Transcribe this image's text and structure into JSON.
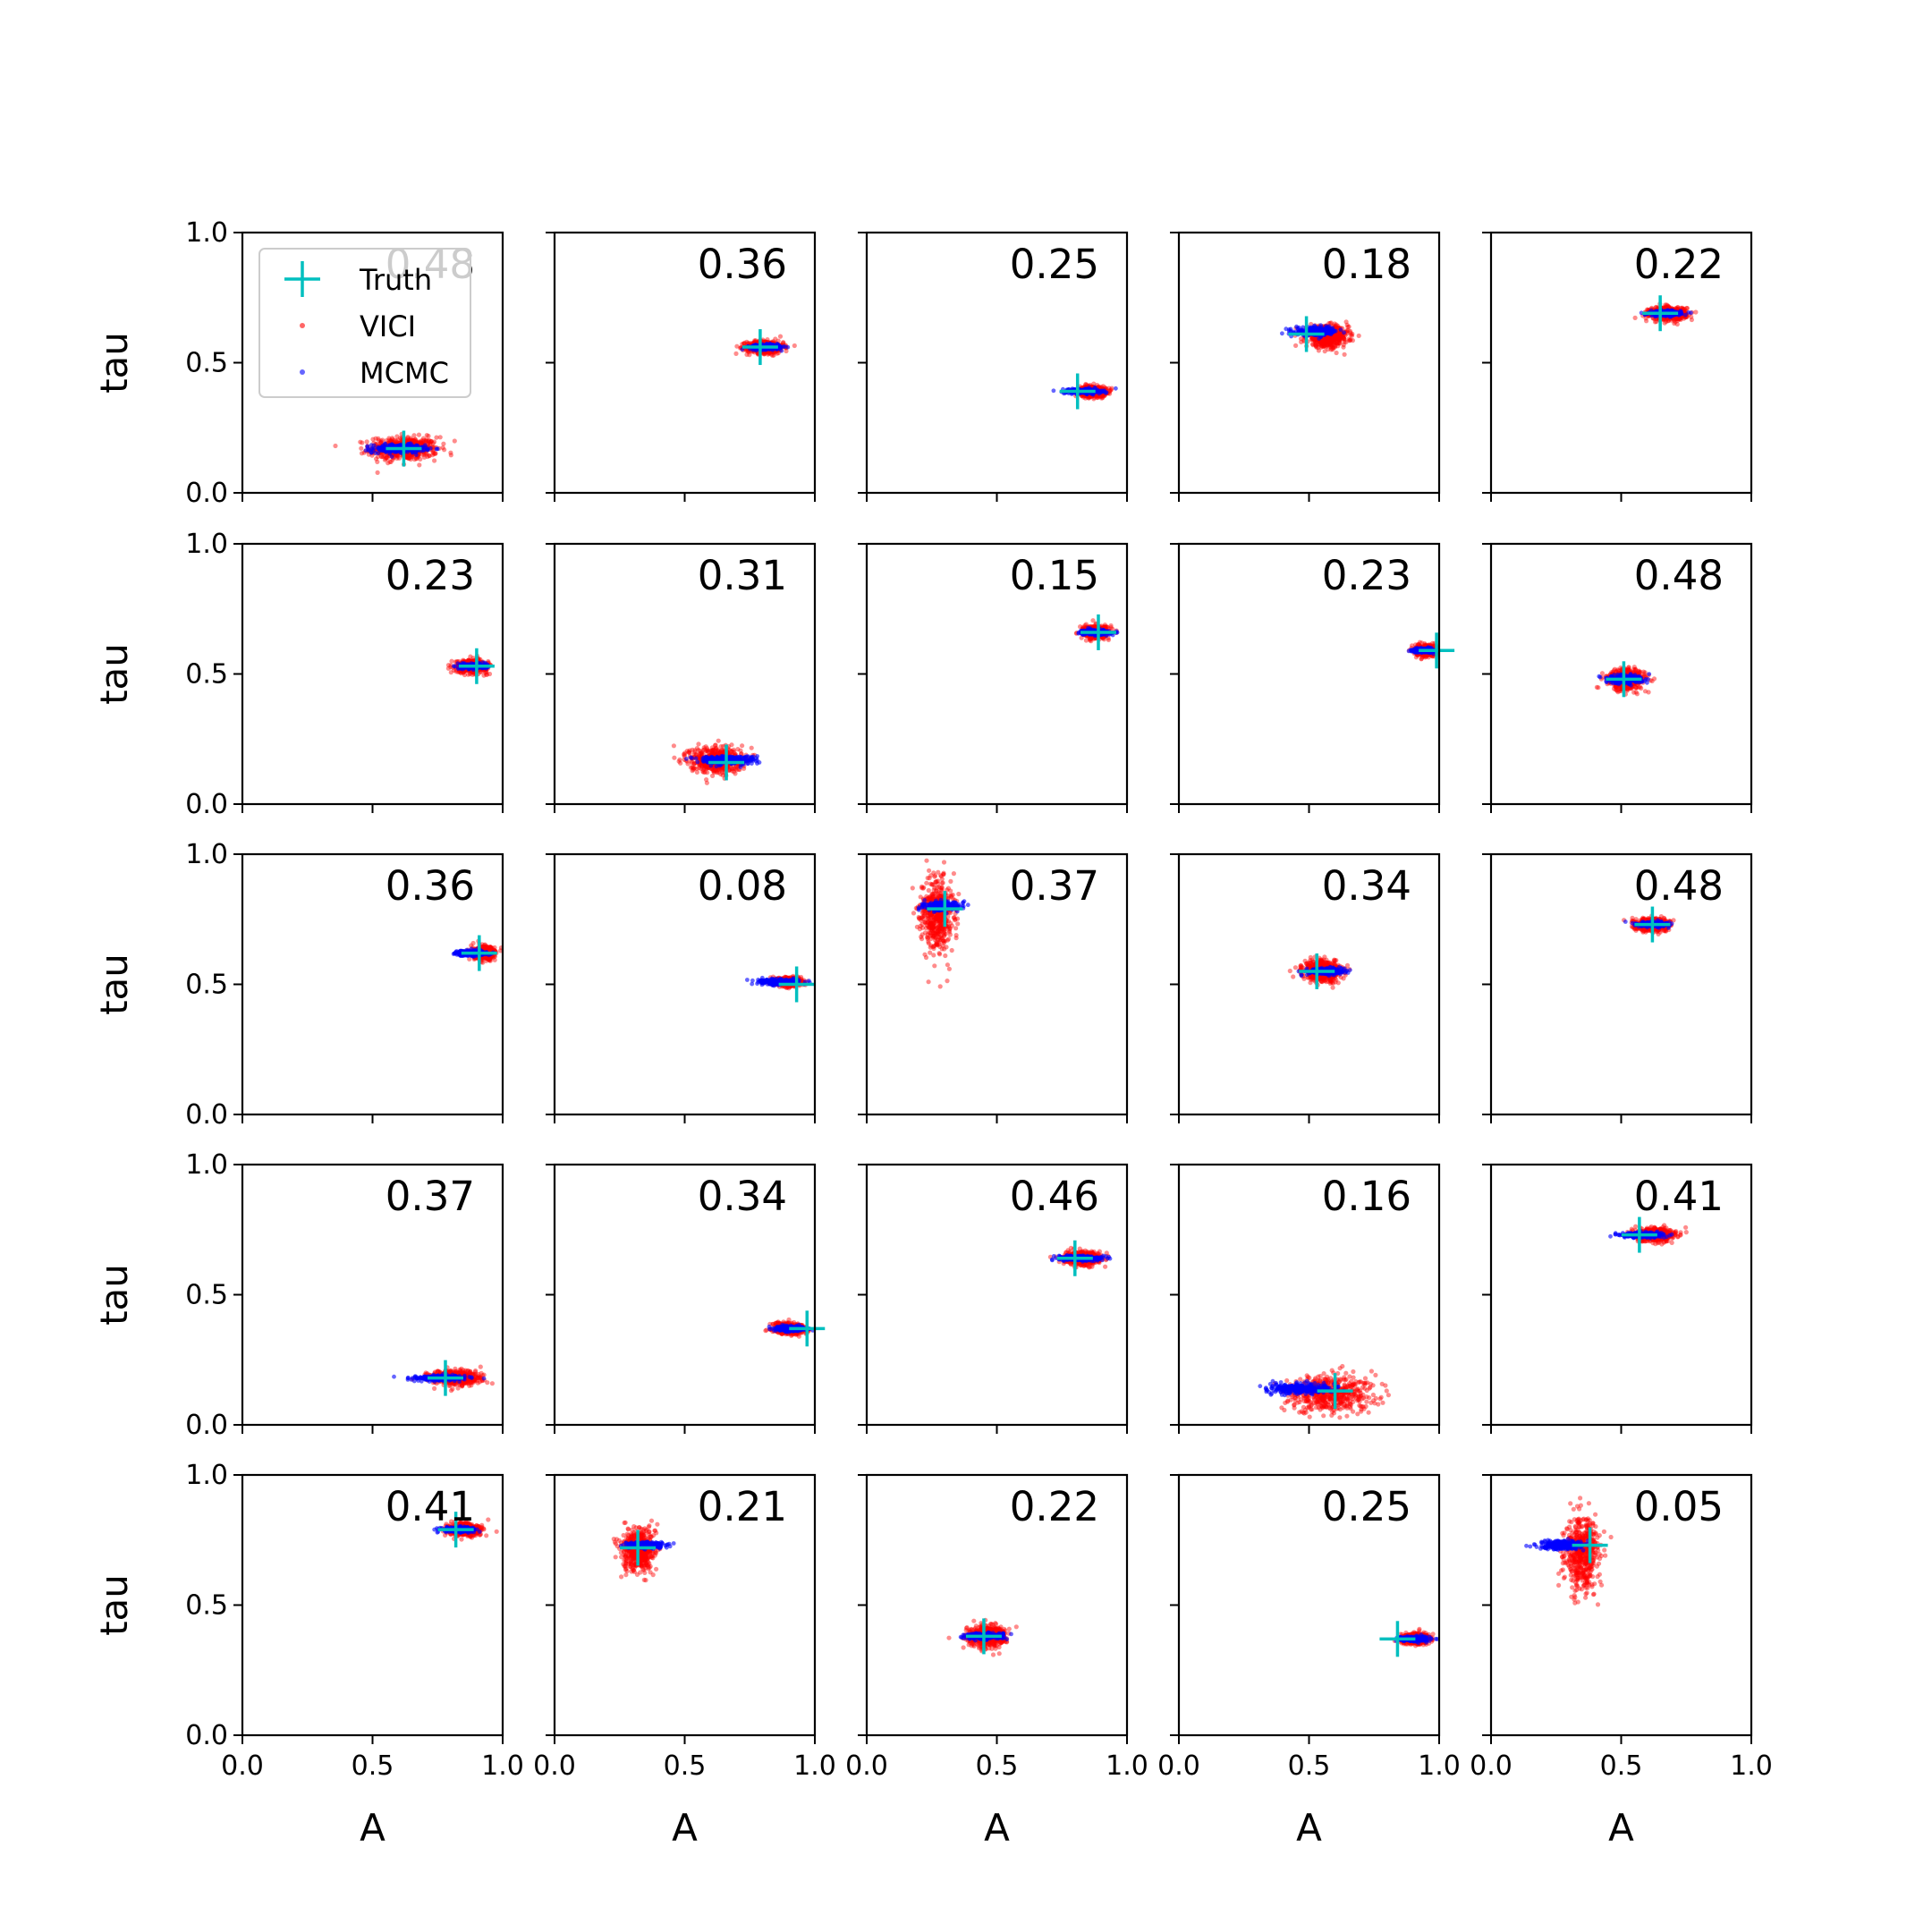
{
  "colors": {
    "truth": "#00bfbf",
    "vici": "#ff0000",
    "mcmc": "#0000ff",
    "axes": "#000000",
    "background": "#ffffff"
  },
  "icons": {
    "truth": "plus-marker",
    "vici": "dot-marker",
    "mcmc": "dot-marker"
  },
  "chart_data": {
    "type": "scatter",
    "grid": false,
    "rows": 5,
    "cols": 5,
    "xlabel": "A",
    "ylabel": "tau",
    "xlim": [
      0,
      1
    ],
    "ylim": [
      0,
      1
    ],
    "xticks": [
      "0.0",
      "0.5",
      "1.0"
    ],
    "yticks": [
      "0.0",
      "0.5",
      "1.0"
    ],
    "legend": {
      "placement": "upper-left of first panel",
      "entries": [
        {
          "key": "truth",
          "label": "Truth"
        },
        {
          "key": "vici",
          "label": "VICI"
        },
        {
          "key": "mcmc",
          "label": "MCMC"
        }
      ]
    },
    "panels": [
      {
        "overlap": "0.48",
        "truth": [
          0.62,
          0.17
        ],
        "vici": {
          "center": [
            0.62,
            0.17
          ],
          "spread": [
            0.13,
            0.022
          ]
        },
        "mcmc": {
          "center": [
            0.6,
            0.17
          ],
          "spread": [
            0.1,
            0.008
          ]
        }
      },
      {
        "overlap": "0.36",
        "truth": [
          0.79,
          0.56
        ],
        "vici": {
          "center": [
            0.81,
            0.56
          ],
          "spread": [
            0.07,
            0.012
          ]
        },
        "mcmc": {
          "center": [
            0.81,
            0.56
          ],
          "spread": [
            0.06,
            0.005
          ]
        }
      },
      {
        "overlap": "0.25",
        "truth": [
          0.81,
          0.39
        ],
        "vici": {
          "center": [
            0.87,
            0.39
          ],
          "spread": [
            0.05,
            0.01
          ]
        },
        "mcmc": {
          "center": [
            0.83,
            0.39
          ],
          "spread": [
            0.07,
            0.005
          ]
        }
      },
      {
        "overlap": "0.18",
        "truth": [
          0.49,
          0.61
        ],
        "vici": {
          "center": [
            0.57,
            0.6
          ],
          "spread": [
            0.08,
            0.02
          ]
        },
        "mcmc": {
          "center": [
            0.53,
            0.62
          ],
          "spread": [
            0.08,
            0.008
          ]
        }
      },
      {
        "overlap": "0.22",
        "truth": [
          0.65,
          0.69
        ],
        "vici": {
          "center": [
            0.68,
            0.69
          ],
          "spread": [
            0.07,
            0.012
          ]
        },
        "mcmc": {
          "center": [
            0.67,
            0.69
          ],
          "spread": [
            0.06,
            0.005
          ]
        }
      },
      {
        "overlap": "0.23",
        "truth": [
          0.9,
          0.53
        ],
        "vici": {
          "center": [
            0.88,
            0.53
          ],
          "spread": [
            0.06,
            0.012
          ]
        },
        "mcmc": {
          "center": [
            0.89,
            0.53
          ],
          "spread": [
            0.05,
            0.005
          ]
        }
      },
      {
        "overlap": "0.31",
        "truth": [
          0.66,
          0.16
        ],
        "vici": {
          "center": [
            0.62,
            0.17
          ],
          "spread": [
            0.1,
            0.025
          ]
        },
        "mcmc": {
          "center": [
            0.66,
            0.17
          ],
          "spread": [
            0.11,
            0.008
          ]
        }
      },
      {
        "overlap": "0.15",
        "truth": [
          0.89,
          0.66
        ],
        "vici": {
          "center": [
            0.88,
            0.66
          ],
          "spread": [
            0.05,
            0.012
          ]
        },
        "mcmc": {
          "center": [
            0.88,
            0.66
          ],
          "spread": [
            0.05,
            0.005
          ]
        }
      },
      {
        "overlap": "0.23",
        "truth": [
          0.99,
          0.59
        ],
        "vici": {
          "center": [
            0.95,
            0.59
          ],
          "spread": [
            0.04,
            0.01
          ]
        },
        "mcmc": {
          "center": [
            0.94,
            0.59
          ],
          "spread": [
            0.04,
            0.004
          ]
        }
      },
      {
        "overlap": "0.48",
        "truth": [
          0.51,
          0.48
        ],
        "vici": {
          "center": [
            0.52,
            0.48
          ],
          "spread": [
            0.07,
            0.02
          ]
        },
        "mcmc": {
          "center": [
            0.51,
            0.48
          ],
          "spread": [
            0.07,
            0.008
          ]
        }
      },
      {
        "overlap": "0.36",
        "truth": [
          0.91,
          0.62
        ],
        "vici": {
          "center": [
            0.93,
            0.62
          ],
          "spread": [
            0.04,
            0.012
          ]
        },
        "mcmc": {
          "center": [
            0.88,
            0.62
          ],
          "spread": [
            0.06,
            0.005
          ]
        }
      },
      {
        "overlap": "0.08",
        "truth": [
          0.93,
          0.5
        ],
        "vici": {
          "center": [
            0.9,
            0.51
          ],
          "spread": [
            0.05,
            0.008
          ]
        },
        "mcmc": {
          "center": [
            0.86,
            0.51
          ],
          "spread": [
            0.08,
            0.005
          ]
        }
      },
      {
        "overlap": "0.37",
        "truth": [
          0.3,
          0.79
        ],
        "vici": {
          "center": [
            0.27,
            0.77
          ],
          "spread": [
            0.06,
            0.07
          ]
        },
        "mcmc": {
          "center": [
            0.29,
            0.8
          ],
          "spread": [
            0.07,
            0.008
          ]
        }
      },
      {
        "overlap": "0.34",
        "truth": [
          0.53,
          0.55
        ],
        "vici": {
          "center": [
            0.55,
            0.55
          ],
          "spread": [
            0.07,
            0.02
          ]
        },
        "mcmc": {
          "center": [
            0.56,
            0.55
          ],
          "spread": [
            0.07,
            0.006
          ]
        }
      },
      {
        "overlap": "0.48",
        "truth": [
          0.62,
          0.73
        ],
        "vici": {
          "center": [
            0.62,
            0.73
          ],
          "spread": [
            0.06,
            0.012
          ]
        },
        "mcmc": {
          "center": [
            0.62,
            0.73
          ],
          "spread": [
            0.06,
            0.005
          ]
        }
      },
      {
        "overlap": "0.37",
        "truth": [
          0.78,
          0.18
        ],
        "vici": {
          "center": [
            0.82,
            0.18
          ],
          "spread": [
            0.09,
            0.014
          ]
        },
        "mcmc": {
          "center": [
            0.76,
            0.18
          ],
          "spread": [
            0.1,
            0.005
          ]
        }
      },
      {
        "overlap": "0.34",
        "truth": [
          0.97,
          0.37
        ],
        "vici": {
          "center": [
            0.9,
            0.37
          ],
          "spread": [
            0.06,
            0.01
          ]
        },
        "mcmc": {
          "center": [
            0.91,
            0.37
          ],
          "spread": [
            0.06,
            0.005
          ]
        }
      },
      {
        "overlap": "0.46",
        "truth": [
          0.8,
          0.64
        ],
        "vici": {
          "center": [
            0.83,
            0.64
          ],
          "spread": [
            0.07,
            0.012
          ]
        },
        "mcmc": {
          "center": [
            0.82,
            0.64
          ],
          "spread": [
            0.08,
            0.005
          ]
        }
      },
      {
        "overlap": "0.16",
        "truth": [
          0.6,
          0.13
        ],
        "vici": {
          "center": [
            0.58,
            0.12
          ],
          "spread": [
            0.17,
            0.035
          ]
        },
        "mcmc": {
          "center": [
            0.47,
            0.14
          ],
          "spread": [
            0.13,
            0.01
          ]
        }
      },
      {
        "overlap": "0.41",
        "truth": [
          0.57,
          0.73
        ],
        "vici": {
          "center": [
            0.63,
            0.73
          ],
          "spread": [
            0.07,
            0.012
          ]
        },
        "mcmc": {
          "center": [
            0.58,
            0.73
          ],
          "spread": [
            0.09,
            0.005
          ]
        }
      },
      {
        "overlap": "0.41",
        "truth": [
          0.82,
          0.79
        ],
        "vici": {
          "center": [
            0.85,
            0.79
          ],
          "spread": [
            0.06,
            0.012
          ]
        },
        "mcmc": {
          "center": [
            0.83,
            0.79
          ],
          "spread": [
            0.06,
            0.005
          ]
        }
      },
      {
        "overlap": "0.21",
        "truth": [
          0.32,
          0.72
        ],
        "vici": {
          "center": [
            0.32,
            0.71
          ],
          "spread": [
            0.06,
            0.04
          ]
        },
        "mcmc": {
          "center": [
            0.35,
            0.73
          ],
          "spread": [
            0.08,
            0.006
          ]
        }
      },
      {
        "overlap": "0.22",
        "truth": [
          0.45,
          0.38
        ],
        "vici": {
          "center": [
            0.46,
            0.38
          ],
          "spread": [
            0.07,
            0.02
          ]
        },
        "mcmc": {
          "center": [
            0.45,
            0.38
          ],
          "spread": [
            0.07,
            0.006
          ]
        }
      },
      {
        "overlap": "0.25",
        "truth": [
          0.84,
          0.37
        ],
        "vici": {
          "center": [
            0.91,
            0.37
          ],
          "spread": [
            0.05,
            0.01
          ]
        },
        "mcmc": {
          "center": [
            0.9,
            0.37
          ],
          "spread": [
            0.06,
            0.005
          ]
        }
      },
      {
        "overlap": "0.05",
        "truth": [
          0.38,
          0.73
        ],
        "vici": {
          "center": [
            0.35,
            0.7
          ],
          "spread": [
            0.06,
            0.07
          ]
        },
        "mcmc": {
          "center": [
            0.27,
            0.73
          ],
          "spread": [
            0.09,
            0.008
          ]
        }
      }
    ]
  }
}
